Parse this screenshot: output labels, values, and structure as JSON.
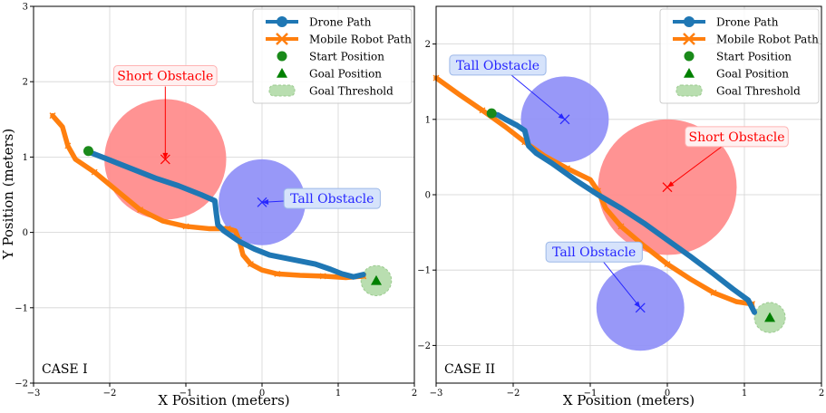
{
  "figure": {
    "ylabel": "Y Position (meters)"
  },
  "legend_labels": [
    "Drone Path",
    "Mobile Robot Path",
    "Start Position",
    "Goal Position",
    "Goal Threshold"
  ],
  "colors": {
    "drone": "#1f77b4",
    "robot": "#ff7f0e",
    "start": "#1a8a1a",
    "goal": "#008000",
    "threshold": "#b9deb0",
    "short_obstacle_fill": "#ff8a8a",
    "short_obstacle_text": "#ff0000",
    "tall_obstacle_fill": "#8f8ff7",
    "tall_obstacle_text": "#2727ff",
    "grid": "#d3d3d3"
  },
  "chart_data": [
    {
      "type": "line",
      "case_label": "CASE I",
      "xlabel": "X Position (meters)",
      "ylabel": "Y Position (meters)",
      "xlim": [
        -3,
        2
      ],
      "ylim": [
        -2,
        3
      ],
      "xticks": [
        -3,
        -2,
        -1,
        0,
        1,
        2
      ],
      "yticks": [
        -2,
        -1,
        0,
        1,
        2,
        3
      ],
      "xtick_labels": [
        "−3",
        "−2",
        "−1",
        "0",
        "1",
        "2"
      ],
      "ytick_labels": [
        "−2",
        "−1",
        "0",
        "1",
        "2",
        "3"
      ],
      "grid": true,
      "legend_position": "top-right",
      "series": [
        {
          "name": "Drone Path",
          "x": [
            -2.28,
            -2.0,
            -1.7,
            -1.4,
            -1.1,
            -0.8,
            -0.62,
            -0.6,
            -0.58,
            -0.5,
            -0.3,
            -0.1,
            0.1,
            0.4,
            0.7,
            0.9,
            1.05,
            1.2,
            1.33
          ],
          "y": [
            1.07,
            0.96,
            0.84,
            0.72,
            0.62,
            0.5,
            0.42,
            0.25,
            0.1,
            0.02,
            -0.12,
            -0.22,
            -0.3,
            -0.36,
            -0.42,
            -0.49,
            -0.55,
            -0.59,
            -0.56
          ]
        },
        {
          "name": "Mobile Robot Path",
          "x": [
            -2.75,
            -2.62,
            -2.55,
            -2.45,
            -2.2,
            -1.9,
            -1.6,
            -1.3,
            -1.0,
            -0.7,
            -0.45,
            -0.35,
            -0.3,
            -0.25,
            -0.15,
            0.0,
            0.2,
            0.5,
            0.8,
            1.1,
            1.33
          ],
          "y": [
            1.55,
            1.4,
            1.15,
            0.97,
            0.8,
            0.55,
            0.3,
            0.15,
            0.08,
            0.05,
            0.05,
            0.02,
            -0.1,
            -0.3,
            -0.42,
            -0.5,
            -0.55,
            -0.57,
            -0.58,
            -0.6,
            -0.58
          ]
        }
      ],
      "start": {
        "x": -2.28,
        "y": 1.08
      },
      "goal": {
        "x": 1.5,
        "y": -0.64
      },
      "goal_threshold_radius": 0.2,
      "obstacles": [
        {
          "kind": "short",
          "x": -1.27,
          "y": 0.97,
          "radius": 0.8,
          "label": "Short Obstacle",
          "label_x": -1.27,
          "label_y": 2.08
        },
        {
          "kind": "tall",
          "x": 0.0,
          "y": 0.4,
          "radius": 0.57,
          "label": "Tall Obstacle",
          "label_x": 0.92,
          "label_y": 0.45
        }
      ]
    },
    {
      "type": "line",
      "case_label": "CASE II",
      "xlabel": "X Position (meters)",
      "ylabel": "",
      "xlim": [
        -3,
        2
      ],
      "ylim": [
        -2.5,
        2.5
      ],
      "xticks": [
        -3,
        -2,
        -1,
        0,
        1,
        2
      ],
      "yticks": [
        -2,
        -1,
        0,
        1,
        2
      ],
      "xtick_labels": [
        "−3",
        "−2",
        "−1",
        "0",
        "1",
        "2"
      ],
      "ytick_labels": [
        "−2",
        "−1",
        "0",
        "1",
        "2"
      ],
      "grid": true,
      "legend_position": "top-right",
      "series": [
        {
          "name": "Drone Path",
          "x": [
            -2.28,
            -2.2,
            -2.1,
            -1.95,
            -1.85,
            -1.8,
            -1.7,
            -1.5,
            -1.2,
            -0.9,
            -0.6,
            -0.3,
            0.0,
            0.3,
            0.6,
            0.85,
            1.05,
            1.13
          ],
          "y": [
            1.07,
            1.06,
            1.0,
            0.92,
            0.85,
            0.65,
            0.55,
            0.42,
            0.2,
            0.0,
            -0.18,
            -0.38,
            -0.6,
            -0.82,
            -1.05,
            -1.25,
            -1.4,
            -1.56
          ]
        },
        {
          "name": "Mobile Robot Path",
          "x": [
            -3.0,
            -2.7,
            -2.4,
            -2.1,
            -1.85,
            -1.6,
            -1.3,
            -1.0,
            -0.9,
            -0.8,
            -0.6,
            -0.3,
            0.0,
            0.3,
            0.6,
            0.9,
            1.1
          ],
          "y": [
            1.55,
            1.33,
            1.12,
            0.9,
            0.7,
            0.52,
            0.35,
            0.2,
            0.05,
            -0.18,
            -0.42,
            -0.68,
            -0.92,
            -1.12,
            -1.3,
            -1.42,
            -1.45
          ]
        }
      ],
      "start": {
        "x": -2.28,
        "y": 1.08
      },
      "goal": {
        "x": 1.33,
        "y": -1.63
      },
      "goal_threshold_radius": 0.2,
      "obstacles": [
        {
          "kind": "tall",
          "x": -1.33,
          "y": 1.0,
          "radius": 0.57,
          "label": "Tall Obstacle",
          "label_x": -2.2,
          "label_y": 1.72
        },
        {
          "kind": "short",
          "x": 0.0,
          "y": 0.1,
          "radius": 0.9,
          "label": "Short Obstacle",
          "label_x": 0.9,
          "label_y": 0.77
        },
        {
          "kind": "tall",
          "x": -0.35,
          "y": -1.5,
          "radius": 0.57,
          "label": "Tall Obstacle",
          "label_x": -0.95,
          "label_y": -0.76
        }
      ]
    }
  ]
}
